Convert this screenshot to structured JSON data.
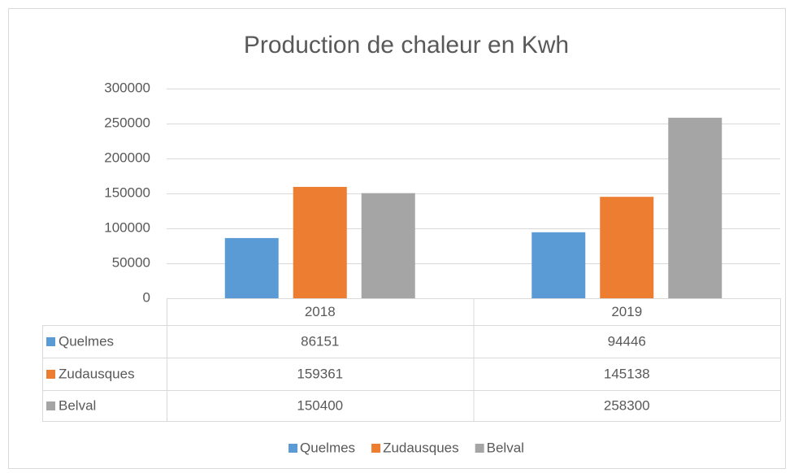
{
  "chart_data": {
    "type": "bar",
    "title": "Production de chaleur en Kwh",
    "categories": [
      "2018",
      "2019"
    ],
    "series": [
      {
        "name": "Quelmes",
        "color": "#5b9bd5",
        "values": [
          86151,
          94446
        ]
      },
      {
        "name": "Zudausques",
        "color": "#ed7d31",
        "values": [
          159361,
          145138
        ]
      },
      {
        "name": "Belval",
        "color": "#a5a5a5",
        "values": [
          150400,
          258300
        ]
      }
    ],
    "ylim": [
      0,
      300000
    ],
    "yticks": [
      0,
      50000,
      100000,
      150000,
      200000,
      250000,
      300000
    ],
    "grid": true,
    "legend": "bottom",
    "data_table": true
  }
}
